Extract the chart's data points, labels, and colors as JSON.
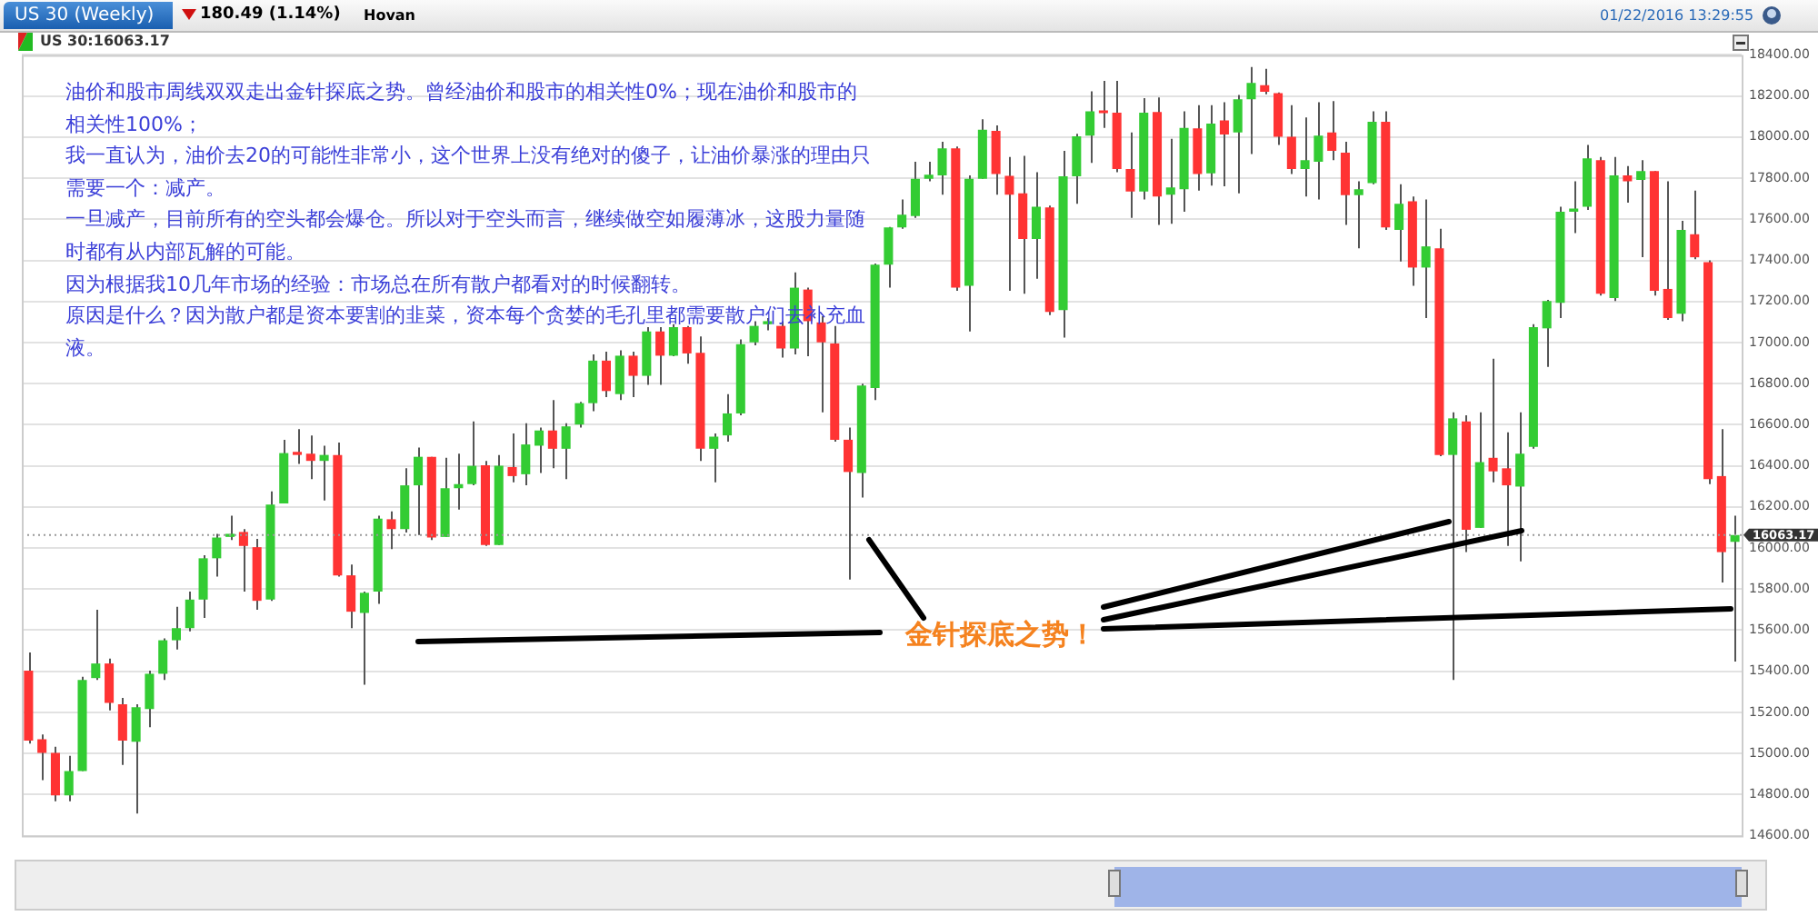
{
  "chart_data": {
    "type": "candlestick",
    "title": "US 30 (Weekly)",
    "subtitle": "US 30:16063.17",
    "annotations": [
      "油价和股市周线双双走出金针探底之势。曾经油价和股市的相关性0%；现在油价和股市的相关性100%；",
      "我一直认为，油价去20的可能性非常小，这个世界上没有绝对的傻子，让油价暴涨的理由只需要一个：减产。",
      "一旦减产，目前所有的空头都会爆仓。所以对于空头而言，继续做空如履薄冰，这股力量随时都有从内部瓦解的可能。",
      "因为根据我10几年市场的经验：市场总在所有散户都看对的时候翻转。",
      "原因是什么？因为散户都是资本要割的韭菜，资本每个贪婪的毛孔里都需要散户们去补充血液。",
      "金针探底之势！",
      "180.49 (1.14%)",
      "Hovan",
      "01/22/2016 13:29:55"
    ],
    "categories": [
      null,
      null,
      null,
      null,
      null,
      null,
      null,
      null,
      null,
      null,
      null,
      null,
      null,
      null,
      null,
      null,
      null,
      null,
      null,
      null,
      null,
      null,
      null,
      null,
      null,
      null,
      null,
      null,
      null,
      null,
      null,
      null,
      null,
      null,
      null,
      null,
      null,
      null,
      null,
      null,
      null,
      null,
      null,
      null,
      null,
      null,
      null,
      null,
      null,
      null,
      null,
      null,
      null,
      null,
      null,
      null,
      null,
      null,
      null,
      null,
      null,
      null,
      null,
      null,
      null,
      null,
      null,
      null,
      null,
      null,
      null,
      null,
      null,
      null,
      null,
      null,
      null,
      null,
      null,
      null,
      null,
      null,
      null,
      null,
      null,
      null,
      null,
      null,
      null,
      null,
      null,
      null,
      null,
      null,
      null,
      null,
      null,
      null,
      null,
      null,
      null,
      null,
      null,
      null,
      null,
      null,
      null,
      null,
      null,
      null,
      null,
      null,
      null,
      null,
      null,
      null,
      null,
      null,
      null,
      null,
      null,
      null,
      null,
      null,
      null,
      null,
      null,
      null
    ],
    "ohlc": [
      [
        15403,
        15492,
        15048,
        15063
      ],
      [
        15069,
        15092,
        14870,
        15003
      ],
      [
        15003,
        15033,
        14767,
        14796
      ],
      [
        14796,
        14989,
        14767,
        14915
      ],
      [
        14915,
        15373,
        14915,
        15358
      ],
      [
        15367,
        15699,
        15358,
        15438
      ],
      [
        15438,
        15462,
        15210,
        15246
      ],
      [
        15240,
        15270,
        14944,
        15063
      ],
      [
        15057,
        15240,
        14708,
        15225
      ],
      [
        15216,
        15403,
        15128,
        15388
      ],
      [
        15388,
        15560,
        15358,
        15551
      ],
      [
        15551,
        15714,
        15506,
        15610
      ],
      [
        15610,
        15788,
        15595,
        15749
      ],
      [
        15749,
        15965,
        15660,
        15950
      ],
      [
        15950,
        16069,
        15861,
        16051
      ],
      [
        16054,
        16157,
        16039,
        16069
      ],
      [
        16078,
        16092,
        15788,
        16010
      ],
      [
        16004,
        16045,
        15699,
        15743
      ],
      [
        15749,
        16276,
        15743,
        16211
      ],
      [
        16217,
        16527,
        16217,
        16462
      ],
      [
        16468,
        16578,
        16409,
        16453
      ],
      [
        16459,
        16548,
        16335,
        16424
      ],
      [
        16424,
        16498,
        16231,
        16453
      ],
      [
        16453,
        16513,
        15861,
        15867
      ],
      [
        15867,
        15920,
        15610,
        15690
      ],
      [
        15684,
        15788,
        15335,
        15782
      ],
      [
        15788,
        16157,
        15728,
        16143
      ],
      [
        16140,
        16178,
        15995,
        16092
      ],
      [
        16092,
        16388,
        16075,
        16305
      ],
      [
        16305,
        16489,
        16063,
        16444
      ],
      [
        16444,
        16444,
        16039,
        16051
      ],
      [
        16054,
        16439,
        16054,
        16291
      ],
      [
        16291,
        16459,
        16187,
        16311
      ],
      [
        16311,
        16616,
        16305,
        16400
      ],
      [
        16403,
        16424,
        16010,
        16015
      ],
      [
        16015,
        16453,
        16015,
        16400
      ],
      [
        16394,
        16557,
        16320,
        16350
      ],
      [
        16359,
        16607,
        16305,
        16504
      ],
      [
        16498,
        16586,
        16365,
        16572
      ],
      [
        16572,
        16720,
        16388,
        16483
      ],
      [
        16483,
        16607,
        16335,
        16592
      ],
      [
        16601,
        16711,
        16586,
        16705
      ],
      [
        16705,
        16942,
        16666,
        16912
      ],
      [
        16912,
        16956,
        16734,
        16764
      ],
      [
        16749,
        16962,
        16720,
        16936
      ],
      [
        16936,
        16956,
        16734,
        16838
      ],
      [
        16838,
        17075,
        16794,
        17054
      ],
      [
        17054,
        17075,
        16794,
        16936
      ],
      [
        16936,
        17089,
        16933,
        17075
      ],
      [
        17075,
        17081,
        16897,
        16947
      ],
      [
        16950,
        17030,
        16424,
        16483
      ],
      [
        16483,
        16557,
        16320,
        16542
      ],
      [
        16548,
        16749,
        16518,
        16655
      ],
      [
        16655,
        17015,
        16646,
        16992
      ],
      [
        17001,
        17104,
        16986,
        17081
      ],
      [
        17089,
        17119,
        17060,
        17104
      ],
      [
        17081,
        17104,
        16927,
        16971
      ],
      [
        16971,
        17341,
        16942,
        17267
      ],
      [
        17258,
        17267,
        16933,
        17104
      ],
      [
        17098,
        17128,
        16660,
        17001
      ],
      [
        16995,
        17081,
        16518,
        16527
      ],
      [
        16527,
        16586,
        15847,
        16370
      ],
      [
        16365,
        16800,
        16246,
        16791
      ],
      [
        16779,
        17385,
        16720,
        17379
      ],
      [
        17379,
        17563,
        17267,
        17560
      ],
      [
        17560,
        17696,
        17554,
        17622
      ],
      [
        17616,
        17880,
        17607,
        17797
      ],
      [
        17797,
        17880,
        17785,
        17817
      ],
      [
        17814,
        17977,
        17720,
        17945
      ],
      [
        17945,
        17954,
        17252,
        17267
      ],
      [
        17276,
        17814,
        17054,
        17797
      ],
      [
        17797,
        18087,
        17797,
        18036
      ],
      [
        18030,
        18057,
        17720,
        17820
      ],
      [
        17811,
        17903,
        17252,
        17720
      ],
      [
        17726,
        17909,
        17237,
        17504
      ],
      [
        17504,
        17829,
        17311,
        17661
      ],
      [
        17658,
        17666,
        17134,
        17149
      ],
      [
        17158,
        17933,
        17024,
        17809
      ],
      [
        17809,
        18016,
        17675,
        18004
      ],
      [
        18007,
        18223,
        17874,
        18125
      ],
      [
        18122,
        18273,
        18045,
        18116
      ],
      [
        18119,
        18273,
        17829,
        17844
      ],
      [
        17844,
        18022,
        17607,
        17735
      ],
      [
        17735,
        18190,
        17696,
        18119
      ],
      [
        18122,
        18193,
        17572,
        17711
      ],
      [
        17720,
        17992,
        17578,
        17755
      ],
      [
        17746,
        18125,
        17637,
        18045
      ],
      [
        18042,
        18155,
        17740,
        17820
      ],
      [
        17823,
        18155,
        17764,
        18066
      ],
      [
        18081,
        18170,
        17761,
        18013
      ],
      [
        18022,
        18205,
        17726,
        18184
      ],
      [
        18184,
        18341,
        17918,
        18264
      ],
      [
        18252,
        18332,
        18208,
        18220
      ],
      [
        18214,
        18217,
        17962,
        18001
      ],
      [
        18001,
        18155,
        17820,
        17844
      ],
      [
        17844,
        18096,
        17711,
        17888
      ],
      [
        17880,
        18170,
        17696,
        18007
      ],
      [
        18022,
        18175,
        17888,
        17933
      ],
      [
        17924,
        17977,
        17572,
        17717
      ],
      [
        17717,
        17785,
        17459,
        17746
      ],
      [
        17776,
        18125,
        17770,
        18075
      ],
      [
        18075,
        18125,
        17548,
        17560
      ],
      [
        17548,
        17770,
        17394,
        17675
      ],
      [
        17687,
        17711,
        17276,
        17365
      ],
      [
        17365,
        17696,
        17119,
        17468
      ],
      [
        17459,
        17554,
        16447,
        16453
      ],
      [
        16453,
        16660,
        15358,
        16631
      ],
      [
        16616,
        16646,
        15980,
        16089
      ],
      [
        16098,
        16660,
        16098,
        16418
      ],
      [
        16439,
        16921,
        16320,
        16373
      ],
      [
        16388,
        16563,
        16010,
        16305
      ],
      [
        16299,
        16660,
        15935,
        16459
      ],
      [
        16492,
        17089,
        16483,
        17075
      ],
      [
        17069,
        17208,
        16882,
        17202
      ],
      [
        17193,
        17661,
        17119,
        17637
      ],
      [
        17637,
        17785,
        17533,
        17652
      ],
      [
        17661,
        17962,
        17646,
        17897
      ],
      [
        17888,
        17903,
        17229,
        17237
      ],
      [
        17217,
        17903,
        17202,
        17814
      ],
      [
        17814,
        17859,
        17681,
        17785
      ],
      [
        17791,
        17888,
        17415,
        17835
      ],
      [
        17835,
        17835,
        17229,
        17252
      ],
      [
        17261,
        17785,
        17110,
        17119
      ],
      [
        17140,
        17592,
        17104,
        17548
      ],
      [
        17527,
        17740,
        17406,
        17415
      ],
      [
        17391,
        17400,
        16311,
        16335
      ],
      [
        16350,
        16578,
        15832,
        15980
      ],
      [
        16030,
        16157,
        15447,
        16063.17
      ]
    ],
    "colors": [
      "#ff3333",
      "#ff3333",
      "#ff3333",
      "#33cc33",
      "#33cc33",
      "#33cc33",
      "#ff3333",
      "#ff3333",
      "#33cc33",
      "#33cc33",
      "#33cc33",
      "#33cc33",
      "#33cc33",
      "#33cc33",
      "#33cc33",
      "#33cc33",
      "#ff3333",
      "#ff3333",
      "#33cc33",
      "#33cc33",
      "#ff3333",
      "#ff3333",
      "#33cc33",
      "#ff3333",
      "#ff3333",
      "#33cc33",
      "#33cc33",
      "#ff3333",
      "#33cc33",
      "#33cc33",
      "#ff3333",
      "#33cc33",
      "#33cc33",
      "#33cc33",
      "#ff3333",
      "#33cc33",
      "#ff3333",
      "#33cc33",
      "#33cc33",
      "#ff3333",
      "#33cc33",
      "#33cc33",
      "#33cc33",
      "#ff3333",
      "#33cc33",
      "#ff3333",
      "#33cc33",
      "#ff3333",
      "#33cc33",
      "#ff3333",
      "#ff3333",
      "#33cc33",
      "#33cc33",
      "#33cc33",
      "#33cc33",
      "#33cc33",
      "#ff3333",
      "#33cc33",
      "#ff3333",
      "#ff3333",
      "#ff3333",
      "#ff3333",
      "#33cc33",
      "#33cc33",
      "#33cc33",
      "#33cc33",
      "#33cc33",
      "#33cc33",
      "#33cc33",
      "#ff3333",
      "#33cc33",
      "#33cc33",
      "#ff3333",
      "#ff3333",
      "#ff3333",
      "#33cc33",
      "#ff3333",
      "#33cc33",
      "#33cc33",
      "#33cc33",
      "#ff3333",
      "#ff3333",
      "#ff3333",
      "#33cc33",
      "#ff3333",
      "#33cc33",
      "#33cc33",
      "#ff3333",
      "#33cc33",
      "#ff3333",
      "#33cc33",
      "#33cc33",
      "#ff3333",
      "#ff3333",
      "#ff3333",
      "#33cc33",
      "#33cc33",
      "#ff3333",
      "#ff3333",
      "#33cc33",
      "#33cc33",
      "#ff3333",
      "#33cc33",
      "#ff3333",
      "#33cc33",
      "#ff3333",
      "#33cc33",
      "#ff3333",
      "#33cc33",
      "#ff3333",
      "#ff3333",
      "#33cc33",
      "#33cc33",
      "#33cc33",
      "#33cc33",
      "#33cc33",
      "#33cc33",
      "#ff3333",
      "#33cc33",
      "#ff3333",
      "#33cc33",
      "#ff3333",
      "#ff3333",
      "#33cc33",
      "#ff3333",
      "#ff3333",
      "#ff3333",
      "#33cc33"
    ],
    "ylim": [
      14600,
      18400
    ],
    "yticks": [
      {
        "value": 14600,
        "label": "14600.00"
      },
      {
        "value": 14800,
        "label": "14800.00"
      },
      {
        "value": 15000,
        "label": "15000.00"
      },
      {
        "value": 15200,
        "label": "15200.00"
      },
      {
        "value": 15400,
        "label": "15400.00"
      },
      {
        "value": 15600,
        "label": "15600.00"
      },
      {
        "value": 15800,
        "label": "15800.00"
      },
      {
        "value": 16000,
        "label": "16000.00"
      },
      {
        "value": 16200,
        "label": "16200.00"
      },
      {
        "value": 16400,
        "label": "16400.00"
      },
      {
        "value": 16600,
        "label": "16600.00"
      },
      {
        "value": 16800,
        "label": "16800.00"
      },
      {
        "value": 17000,
        "label": "17000.00"
      },
      {
        "value": 17200,
        "label": "17200.00"
      },
      {
        "value": 17400,
        "label": "17400.00"
      },
      {
        "value": 17600,
        "label": "17600.00"
      },
      {
        "value": 17800,
        "label": "17800.00"
      },
      {
        "value": 18000,
        "label": "18000.00"
      },
      {
        "value": 18200,
        "label": "18200.00"
      },
      {
        "value": 18400,
        "label": "18400.00"
      }
    ],
    "ref_lines": [
      {
        "axis": "y",
        "value": 16063.17,
        "label": "16063.17",
        "line_style": "dotted",
        "color": "#999999"
      }
    ],
    "grid": "y",
    "legend": false
  }
}
